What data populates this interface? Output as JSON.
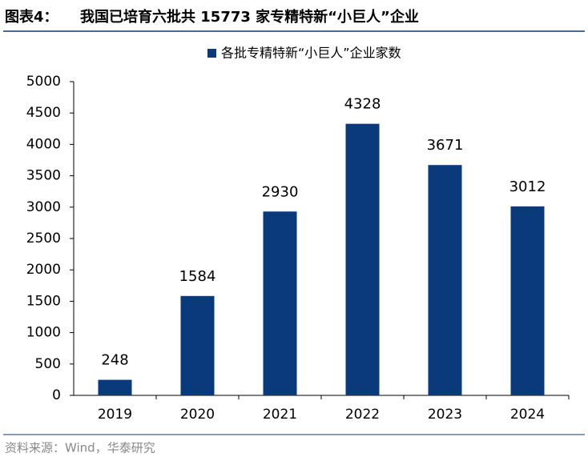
{
  "chart_data": {
    "type": "bar",
    "figure_label": "图表4：",
    "title": "我国已培育六批共 15773 家专精特新“小巨人”企业",
    "categories": [
      "2019",
      "2020",
      "2021",
      "2022",
      "2023",
      "2024"
    ],
    "series": [
      {
        "name": "各批专精特新“小巨人”企业家数",
        "color": "#0a3a7c",
        "values": [
          248,
          1584,
          2930,
          4328,
          3671,
          3012
        ]
      }
    ],
    "ylim": [
      0,
      5000
    ],
    "yticks": [
      0,
      500,
      1000,
      1500,
      2000,
      2500,
      3000,
      3500,
      4000,
      4500,
      5000
    ],
    "grid": false,
    "legend": "top",
    "source": "资料来源：Wind，华泰研究"
  }
}
